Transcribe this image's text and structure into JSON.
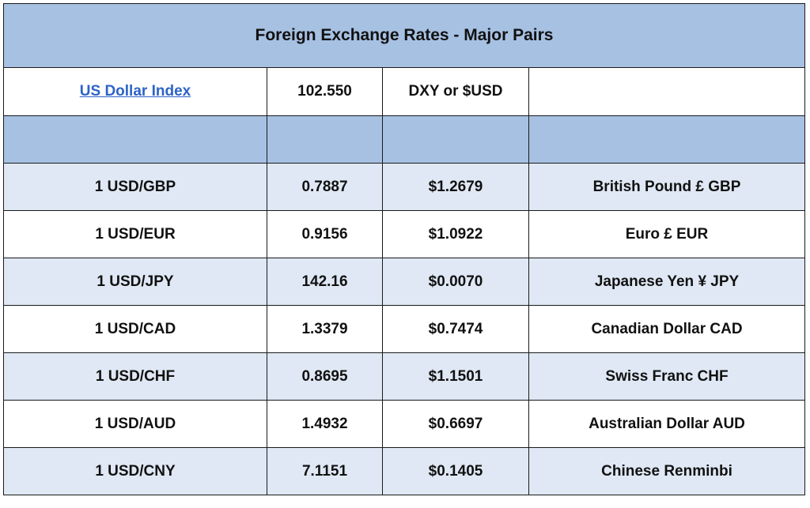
{
  "title": "Foreign Exchange Rates - Major Pairs",
  "index": {
    "label": "US Dollar Index",
    "value": "102.550",
    "symbol": "DXY or $USD",
    "note": ""
  },
  "rows": [
    {
      "pair": "1 USD/GBP",
      "rate": "0.7887",
      "usd_value": "$1.2679",
      "currency": "British Pound £ GBP"
    },
    {
      "pair": "1 USD/EUR",
      "rate": "0.9156",
      "usd_value": "$1.0922",
      "currency": "Euro £ EUR"
    },
    {
      "pair": "1 USD/JPY",
      "rate": "142.16",
      "usd_value": "$0.0070",
      "currency": "Japanese Yen ¥ JPY"
    },
    {
      "pair": "1 USD/CAD",
      "rate": "1.3379",
      "usd_value": "$0.7474",
      "currency": "Canadian Dollar CAD"
    },
    {
      "pair": "1 USD/CHF",
      "rate": "0.8695",
      "usd_value": "$1.1501",
      "currency": "Swiss Franc CHF"
    },
    {
      "pair": "1 USD/AUD",
      "rate": "1.4932",
      "usd_value": "$0.6697",
      "currency": "Australian Dollar AUD"
    },
    {
      "pair": "1 USD/CNY",
      "rate": "7.1151",
      "usd_value": "$0.1405",
      "currency": "Chinese Renminbi"
    }
  ],
  "colors": {
    "header_fill": "#a7c1e3",
    "shaded_row": "#dfe8f4",
    "link": "#2d63c8",
    "border": "#1a1a1a"
  }
}
